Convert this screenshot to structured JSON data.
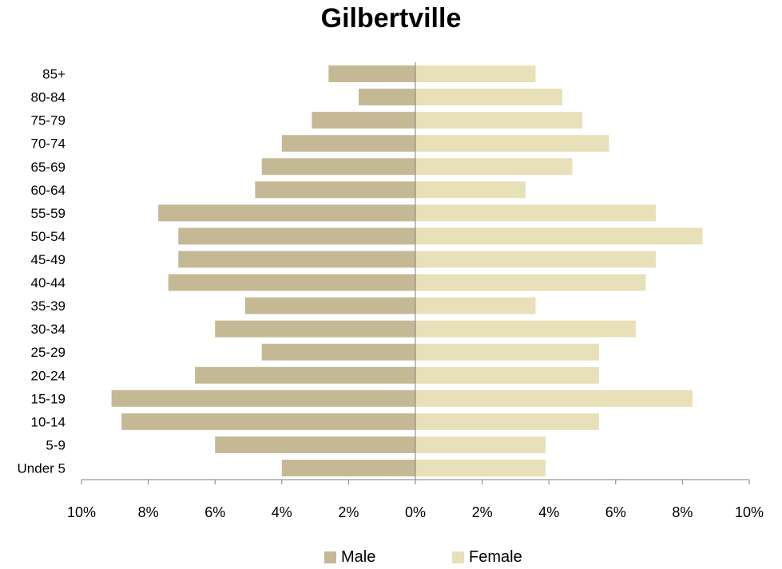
{
  "chart_data": {
    "type": "bar",
    "orientation": "horizontal",
    "title": "Gilbertville",
    "categories": [
      "85+",
      "80-84",
      "75-79",
      "70-74",
      "65-69",
      "60-64",
      "55-59",
      "50-54",
      "45-49",
      "40-44",
      "35-39",
      "30-34",
      "25-29",
      "20-24",
      "15-19",
      "10-14",
      "5-9",
      "Under 5"
    ],
    "series": [
      {
        "name": "Male",
        "color": "#c5b995",
        "values": [
          2.6,
          1.7,
          3.1,
          4.0,
          4.6,
          4.8,
          7.7,
          7.1,
          7.1,
          7.4,
          5.1,
          6.0,
          4.6,
          6.6,
          9.1,
          8.8,
          6.0,
          4.0
        ]
      },
      {
        "name": "Female",
        "color": "#e8e0b8",
        "values": [
          3.6,
          4.4,
          5.0,
          5.8,
          4.7,
          3.3,
          7.2,
          8.6,
          7.2,
          6.9,
          3.6,
          6.6,
          5.5,
          5.5,
          8.3,
          5.5,
          3.9,
          3.9
        ]
      }
    ],
    "x_ticks": [
      "10%",
      "8%",
      "6%",
      "4%",
      "2%",
      "0%",
      "2%",
      "4%",
      "6%",
      "8%",
      "10%"
    ],
    "xlim": [
      -10,
      10
    ],
    "grid": false,
    "legend_position": "bottom"
  }
}
